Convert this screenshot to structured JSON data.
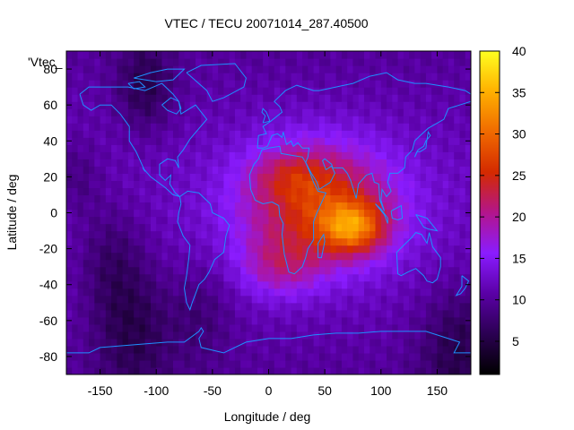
{
  "chart_data": {
    "type": "heatmap",
    "title": "VTEC / TECU 20071014_287.40500",
    "xlabel": "Longitude / deg",
    "ylabel": "Latitude / deg",
    "key_label": "'Vtec_",
    "xlim": [
      -180,
      180
    ],
    "ylim": [
      -90,
      90
    ],
    "x_ticks": [
      -150,
      -100,
      -50,
      0,
      50,
      100,
      150
    ],
    "y_ticks": [
      -80,
      -60,
      -40,
      -20,
      0,
      20,
      40,
      60,
      80
    ],
    "colorbar": {
      "range": [
        1,
        40
      ],
      "ticks": [
        5,
        10,
        15,
        20,
        25,
        30,
        35,
        40
      ],
      "palette": [
        "#000000",
        "#2b0052",
        "#5a00a6",
        "#8a1cff",
        "#b3158c",
        "#d42a00",
        "#f06a00",
        "#ffb000",
        "#ffff20"
      ]
    },
    "coastline_color": "#1e90ff",
    "grid": false,
    "features": {
      "background_vtec": 10,
      "dark_patches": [
        {
          "lon": -110,
          "lat": 70,
          "sigma": 18,
          "vtec": -5
        },
        {
          "lon": -140,
          "lat": -25,
          "sigma": 22,
          "vtec": -4
        },
        {
          "lon": -120,
          "lat": -65,
          "sigma": 25,
          "vtec": -5
        },
        {
          "lon": 170,
          "lat": -75,
          "sigma": 25,
          "vtec": -5
        },
        {
          "lon": -170,
          "lat": 20,
          "sigma": 15,
          "vtec": -3
        },
        {
          "lon": -60,
          "lat": -55,
          "sigma": 20,
          "vtec": -3
        }
      ],
      "peaks": [
        {
          "lon": 45,
          "lat": 5,
          "sigma_lon": 48,
          "sigma_lat": 24,
          "vtec": 14
        },
        {
          "lon": 75,
          "lat": -8,
          "sigma_lon": 20,
          "sigma_lat": 10,
          "vtec": 13
        },
        {
          "lon": 20,
          "lat": 22,
          "sigma_lon": 25,
          "sigma_lat": 10,
          "vtec": 4
        },
        {
          "lon": 10,
          "lat": -30,
          "sigma_lon": 25,
          "sigma_lat": 12,
          "vtec": 6
        }
      ]
    }
  }
}
